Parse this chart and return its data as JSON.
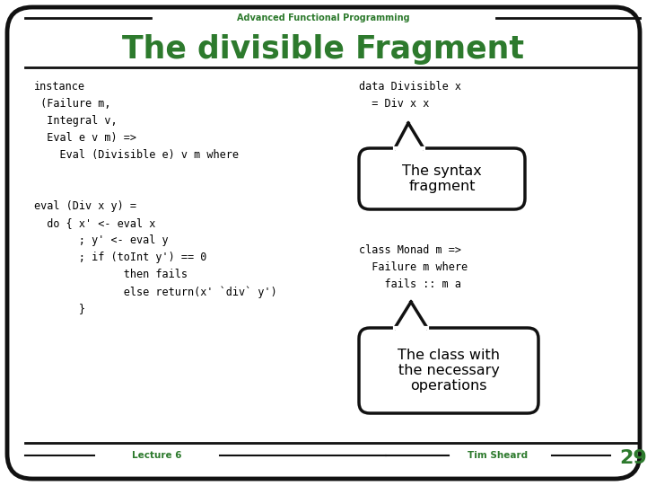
{
  "bg_color": "#ffffff",
  "border_color": "#111111",
  "green_dark": "#2d7a2d",
  "green_title": "#2d7a2d",
  "text_black": "#000000",
  "slide_title": "The divisible Fragment",
  "top_label": "Advanced Functional Programming",
  "bottom_left": "Lecture 6",
  "bottom_center": "Tim Sheard",
  "bottom_right": "29",
  "code_left": [
    "instance",
    " (Failure m,",
    "  Integral v,",
    "  Eval e v m) =>",
    "    Eval (Divisible e) v m where",
    "",
    "",
    "eval (Div x y) =",
    "  do { x' <- eval x",
    "       ; y' <- eval y",
    "       ; if (toInt y') == 0",
    "              then fails",
    "              else return(x' `div` y')",
    "       }"
  ],
  "code_right_top": [
    "data Divisible x",
    "  = Div x x"
  ],
  "code_right_bottom": [
    "class Monad m =>",
    "  Failure m where",
    "    fails :: m a"
  ],
  "callout_top_text": "The syntax\nfragment",
  "callout_bottom_text": "The class with\nthe necessary\noperations"
}
